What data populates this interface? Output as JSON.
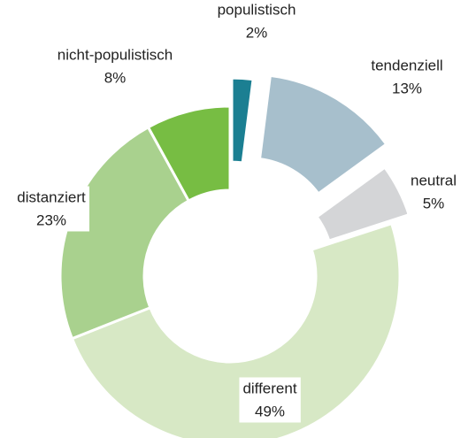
{
  "chart_data": {
    "type": "donut",
    "categories": [
      "populistisch",
      "tendenziell",
      "neutral",
      "different",
      "distanziert",
      "nicht-populistisch"
    ],
    "values": [
      2,
      13,
      5,
      49,
      23,
      8
    ],
    "value_labels": [
      "2%",
      "13%",
      "5%",
      "49%",
      "23%",
      "8%"
    ],
    "colors": [
      "#1b7f92",
      "#a7bfcc",
      "#d4d5d7",
      "#d7e8c5",
      "#a9d18e",
      "#77bd43"
    ]
  }
}
